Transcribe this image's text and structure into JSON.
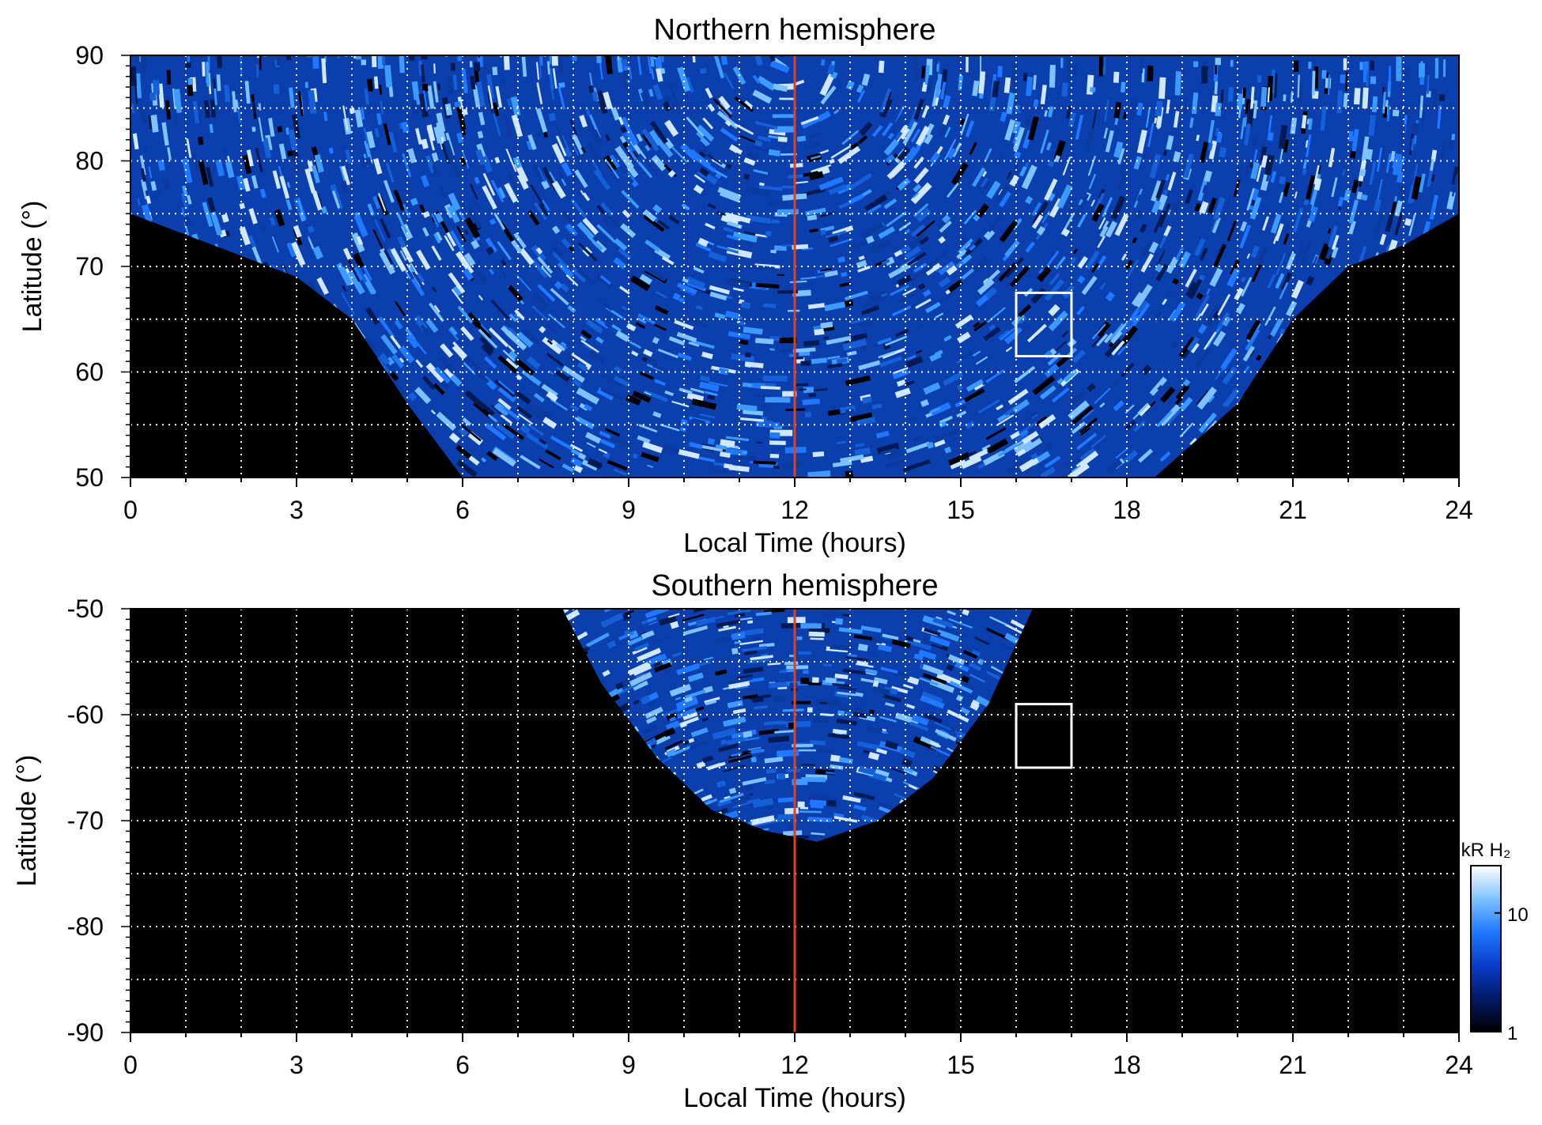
{
  "chart_data": [
    {
      "type": "heatmap",
      "title": "Northern hemisphere",
      "xlabel": "Local Time (hours)",
      "ylabel": "Latitude (°)",
      "xlim": [
        0,
        24
      ],
      "ylim": [
        50,
        90
      ],
      "x_ticks": [
        "0",
        "3",
        "6",
        "9",
        "12",
        "15",
        "18",
        "21",
        "24"
      ],
      "y_ticks": [
        "50",
        "60",
        "70",
        "80",
        "90"
      ],
      "x_tick_values": [
        0,
        3,
        6,
        9,
        12,
        15,
        18,
        21,
        24
      ],
      "y_tick_values": [
        50,
        60,
        70,
        80,
        90
      ],
      "grid": true,
      "grid_x_step": 1,
      "grid_y_step": 5,
      "noon_line_x": 12,
      "box": {
        "x": [
          16,
          17
        ],
        "y": [
          61.5,
          67.5
        ]
      },
      "coverage_boundary": [
        {
          "x": 0,
          "y": 75
        },
        {
          "x": 1,
          "y": 73
        },
        {
          "x": 2,
          "y": 71
        },
        {
          "x": 3,
          "y": 69
        },
        {
          "x": 4,
          "y": 65
        },
        {
          "x": 5,
          "y": 57
        },
        {
          "x": 6,
          "y": 50
        },
        {
          "x": 18.5,
          "y": 50
        },
        {
          "x": 20,
          "y": 57
        },
        {
          "x": 21,
          "y": 65
        },
        {
          "x": 22,
          "y": 70
        },
        {
          "x": 23,
          "y": 72
        },
        {
          "x": 24,
          "y": 75
        }
      ]
    },
    {
      "type": "heatmap",
      "title": "Southern hemisphere",
      "xlabel": "Local Time (hours)",
      "ylabel": "Latitude (°)",
      "xlim": [
        0,
        24
      ],
      "ylim": [
        -90,
        -50
      ],
      "x_ticks": [
        "0",
        "3",
        "6",
        "9",
        "12",
        "15",
        "18",
        "21",
        "24"
      ],
      "y_ticks": [
        "-50",
        "-60",
        "-70",
        "-80",
        "-90"
      ],
      "x_tick_values": [
        0,
        3,
        6,
        9,
        12,
        15,
        18,
        21,
        24
      ],
      "y_tick_values": [
        -50,
        -60,
        -70,
        -80,
        -90
      ],
      "grid": true,
      "grid_x_step": 1,
      "grid_y_step": 5,
      "noon_line_x": 12,
      "box": {
        "x": [
          16,
          17
        ],
        "y": [
          -65,
          -59
        ]
      },
      "coverage_boundary": [
        {
          "x": 7.8,
          "y": -50
        },
        {
          "x": 8.5,
          "y": -57
        },
        {
          "x": 9.5,
          "y": -64
        },
        {
          "x": 10.5,
          "y": -69
        },
        {
          "x": 11.5,
          "y": -71
        },
        {
          "x": 12.4,
          "y": -72
        },
        {
          "x": 13.5,
          "y": -70
        },
        {
          "x": 14.5,
          "y": -66
        },
        {
          "x": 15.5,
          "y": -59
        },
        {
          "x": 16.3,
          "y": -50
        }
      ]
    }
  ],
  "colorbar": {
    "label": "kR H₂",
    "scale": "log",
    "range": [
      1,
      25
    ],
    "ticks": [
      "1",
      "10"
    ],
    "tick_values": [
      1,
      10
    ],
    "colors": [
      "#000000",
      "#001a66",
      "#0a3cc8",
      "#1f78ff",
      "#7ec3ff",
      "#ffffff"
    ]
  },
  "colors": {
    "background": "#000000",
    "noon_line": "#e0401a",
    "grid": "#ffffff",
    "box": "#ffffff"
  }
}
